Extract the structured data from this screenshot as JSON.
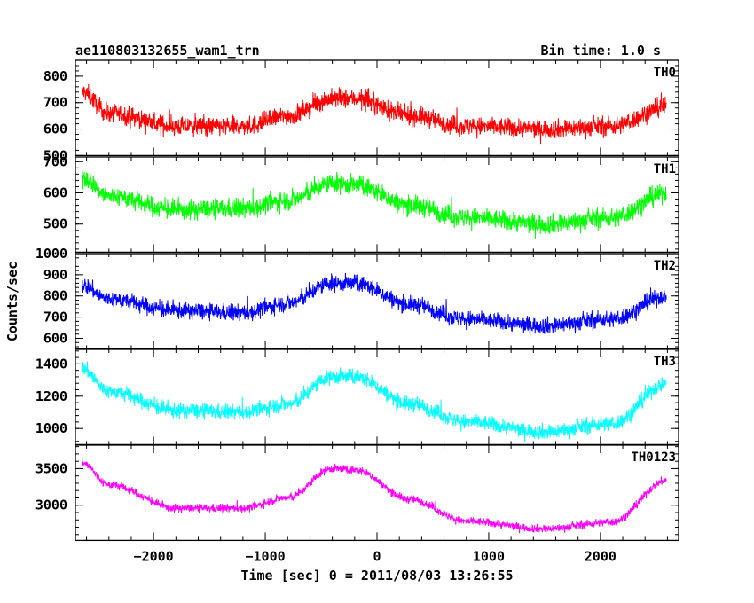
{
  "header": {
    "title": "ae110803132655_wam1_trn",
    "bin_time": "Bin time: 1.0 s"
  },
  "axes": {
    "ylabel": "Counts/sec",
    "xlabel": "Time [sec] 0 = 2011/08/03 13:26:55"
  },
  "chart_data": {
    "type": "line",
    "title": "ae110803132655_wam1_trn",
    "xlabel": "Time [sec] 0 = 2011/08/03 13:26:55",
    "ylabel": "Counts/sec",
    "xlim": [
      -2700,
      2700
    ],
    "x_ticks": [
      -2000,
      -1000,
      0,
      1000,
      2000
    ],
    "x_tick_labels": [
      "−2000",
      "−1000",
      "0",
      "1000",
      "2000"
    ],
    "x_range": [
      -2640,
      2590
    ],
    "grid": false,
    "panels": [
      {
        "name": "TH0",
        "color": "#ff0000",
        "ylim": [
          500,
          860
        ],
        "y_ticks": [
          500,
          600,
          700,
          800
        ],
        "noise": 45,
        "trend": [
          [
            -2640,
            740
          ],
          [
            -2400,
            660
          ],
          [
            -1800,
            610
          ],
          [
            -1200,
            610
          ],
          [
            -800,
            650
          ],
          [
            -400,
            715
          ],
          [
            -200,
            715
          ],
          [
            300,
            650
          ],
          [
            800,
            610
          ],
          [
            1500,
            600
          ],
          [
            2100,
            610
          ],
          [
            2600,
            685
          ]
        ]
      },
      {
        "name": "TH1",
        "color": "#00ff00",
        "ylim": [
          410,
          715
        ],
        "y_ticks": [
          500,
          600,
          700
        ],
        "noise": 40,
        "trend": [
          [
            -2640,
            650
          ],
          [
            -2400,
            590
          ],
          [
            -1800,
            545
          ],
          [
            -1200,
            550
          ],
          [
            -800,
            575
          ],
          [
            -400,
            630
          ],
          [
            -200,
            625
          ],
          [
            300,
            560
          ],
          [
            800,
            520
          ],
          [
            1500,
            500
          ],
          [
            2100,
            520
          ],
          [
            2600,
            600
          ]
        ]
      },
      {
        "name": "TH2",
        "color": "#0000ff",
        "ylim": [
          550,
          1000
        ],
        "y_ticks": [
          600,
          700,
          800,
          900,
          1000
        ],
        "noise": 50,
        "trend": [
          [
            -2640,
            850
          ],
          [
            -2400,
            785
          ],
          [
            -1800,
            730
          ],
          [
            -1200,
            720
          ],
          [
            -800,
            765
          ],
          [
            -400,
            860
          ],
          [
            -200,
            860
          ],
          [
            300,
            760
          ],
          [
            800,
            690
          ],
          [
            1500,
            660
          ],
          [
            2100,
            690
          ],
          [
            2600,
            800
          ]
        ]
      },
      {
        "name": "TH3",
        "color": "#00ffff",
        "ylim": [
          900,
          1490
        ],
        "y_ticks": [
          1000,
          1200,
          1400
        ],
        "noise": 60,
        "trend": [
          [
            -2640,
            1370
          ],
          [
            -2400,
            1230
          ],
          [
            -1800,
            1110
          ],
          [
            -1200,
            1100
          ],
          [
            -800,
            1150
          ],
          [
            -400,
            1320
          ],
          [
            -200,
            1320
          ],
          [
            300,
            1150
          ],
          [
            800,
            1040
          ],
          [
            1500,
            980
          ],
          [
            2100,
            1030
          ],
          [
            2600,
            1280
          ]
        ]
      },
      {
        "name": "TH0123",
        "color": "#ff00ff",
        "ylim": [
          2520,
          3820
        ],
        "y_ticks": [
          3000,
          3500
        ],
        "noise": 70,
        "trend": [
          [
            -2640,
            3580
          ],
          [
            -2400,
            3280
          ],
          [
            -1800,
            2960
          ],
          [
            -1200,
            2960
          ],
          [
            -800,
            3100
          ],
          [
            -400,
            3500
          ],
          [
            -200,
            3480
          ],
          [
            300,
            3080
          ],
          [
            800,
            2780
          ],
          [
            1500,
            2680
          ],
          [
            2100,
            2770
          ],
          [
            2600,
            3340
          ]
        ]
      }
    ]
  }
}
